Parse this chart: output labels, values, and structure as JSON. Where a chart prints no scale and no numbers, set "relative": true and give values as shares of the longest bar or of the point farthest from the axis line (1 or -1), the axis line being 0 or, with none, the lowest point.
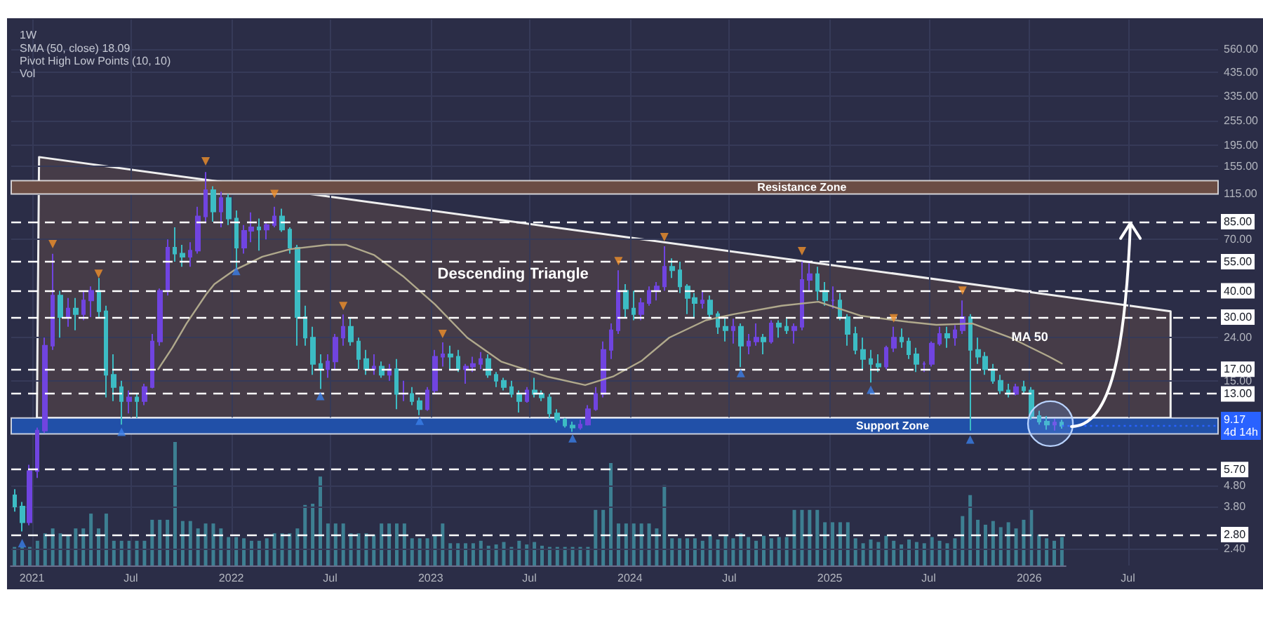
{
  "chart_data": [
    {
      "type": "candlestick",
      "title": "1W",
      "subtitle": "SMA (50, close) 18.09\nPivot High Low Points (10, 10)\nVol",
      "xlim": [
        "2020-11-24",
        "2026-12-13"
      ],
      "xticks": [
        {
          "value": "2021-01-01",
          "label": "2021"
        },
        {
          "value": "2021-07-01",
          "label": "Jul"
        },
        {
          "value": "2022-01-01",
          "label": "2022"
        },
        {
          "value": "2022-07-01",
          "label": "Jul"
        },
        {
          "value": "2023-01-01",
          "label": "2023"
        },
        {
          "value": "2023-07-01",
          "label": "Jul"
        },
        {
          "value": "2024-01-01",
          "label": "2024"
        },
        {
          "value": "2024-07-01",
          "label": "Jul"
        },
        {
          "value": "2025-01-01",
          "label": "2025"
        },
        {
          "value": "2025-07-01",
          "label": "Jul"
        },
        {
          "value": "2026-01-01",
          "label": "2026"
        },
        {
          "value": "2026-07-01",
          "label": "Jul"
        }
      ],
      "ylim": [
        2.0,
        770
      ],
      "log": true,
      "yticks": [
        {
          "value": 560,
          "label": "560.00"
        },
        {
          "value": 435,
          "label": "435.00"
        },
        {
          "value": 335,
          "label": "335.00"
        },
        {
          "value": 255,
          "label": "255.00"
        },
        {
          "value": 195,
          "label": "195.00"
        },
        {
          "value": 155,
          "label": "155.00"
        },
        {
          "value": 115,
          "label": "115.00"
        },
        {
          "value": 70,
          "label": "70.00"
        },
        {
          "value": 24,
          "label": "24.00"
        },
        {
          "value": 15,
          "label": "15.00"
        },
        {
          "value": 4.8,
          "label": "4.80"
        },
        {
          "value": 3.8,
          "label": "3.80"
        },
        {
          "value": 2.4,
          "label": "2.40"
        }
      ],
      "grid": true,
      "series": [
        {
          "type": "area",
          "name": "Descending Triangle",
          "color": "#463c48",
          "x": [
            "2021-01-14",
            "2026-09-17",
            "2026-09-17",
            "2021-01-10",
            "2021-01-14"
          ],
          "values": [
            172,
            32,
            10,
            10,
            172
          ]
        },
        {
          "type": "line",
          "name": "MA 50",
          "color": "#b0a98c",
          "x": [
            "2021-08-20",
            "2021-09-15",
            "2021-10-11",
            "2021-11-16",
            "2021-12-01",
            "2022-01-06",
            "2022-02-27",
            "2022-04-19",
            "2022-06-25",
            "2022-07-31",
            "2022-09-20",
            "2022-11-11",
            "2023-01-09",
            "2023-03-09",
            "2023-05-10",
            "2023-08-02",
            "2023-10-11",
            "2023-12-01",
            "2024-01-22",
            "2024-03-13",
            "2024-05-19",
            "2024-07-09",
            "2024-10-05",
            "2024-12-11",
            "2025-02-26",
            "2025-05-24",
            "2025-07-15",
            "2025-09-19",
            "2025-11-28",
            "2026-02-05",
            "2026-03-02"
          ],
          "values": [
            17,
            21.5,
            28,
            38.5,
            43,
            50,
            58,
            63,
            66,
            66,
            59,
            47,
            34.5,
            24,
            18.5,
            15.7,
            14.3,
            15.7,
            18.6,
            24,
            29,
            31,
            34,
            35.5,
            30.5,
            28.5,
            27.6,
            28,
            24,
            19.6,
            18.09
          ]
        },
        {
          "x": [
            "2020-11-30",
            "2020-12-14",
            "2020-12-28",
            "2021-01-11",
            "2021-01-25",
            "2021-02-08",
            "2021-02-22",
            "2021-03-08",
            "2021-03-22",
            "2021-04-05",
            "2021-04-19",
            "2021-05-03",
            "2021-05-17",
            "2021-05-31",
            "2021-06-14",
            "2021-06-28",
            "2021-07-12",
            "2021-07-26",
            "2021-08-09",
            "2021-08-23",
            "2021-09-06",
            "2021-09-20",
            "2021-10-04",
            "2021-10-18",
            "2021-11-01",
            "2021-11-15",
            "2021-11-29",
            "2021-12-13",
            "2021-12-27",
            "2022-01-10",
            "2022-01-24",
            "2022-02-07",
            "2022-02-21",
            "2022-03-07",
            "2022-03-21",
            "2022-04-04",
            "2022-04-18",
            "2022-05-02",
            "2022-05-16",
            "2022-05-30",
            "2022-06-13",
            "2022-06-27",
            "2022-07-11",
            "2022-07-25",
            "2022-08-08",
            "2022-08-22",
            "2022-09-05",
            "2022-09-19",
            "2022-10-03",
            "2022-10-17",
            "2022-10-31",
            "2022-11-14",
            "2022-11-28",
            "2022-12-12",
            "2022-12-26",
            "2023-01-09",
            "2023-01-23",
            "2023-02-06",
            "2023-02-20",
            "2023-03-06",
            "2023-03-20",
            "2023-04-03",
            "2023-04-17",
            "2023-05-01",
            "2023-05-15",
            "2023-05-29",
            "2023-06-12",
            "2023-06-26",
            "2023-07-10",
            "2023-07-24",
            "2023-08-07",
            "2023-08-21",
            "2023-09-04",
            "2023-09-18",
            "2023-10-02",
            "2023-10-16",
            "2023-10-30",
            "2023-11-13",
            "2023-11-27",
            "2023-12-11",
            "2023-12-25",
            "2024-01-08",
            "2024-01-22",
            "2024-02-05",
            "2024-02-19",
            "2024-03-04",
            "2024-03-18",
            "2024-04-01",
            "2024-04-15",
            "2024-04-29",
            "2024-05-13",
            "2024-05-27",
            "2024-06-10",
            "2024-06-24",
            "2024-07-08",
            "2024-07-22",
            "2024-08-05",
            "2024-08-19",
            "2024-09-02",
            "2024-09-16",
            "2024-09-30",
            "2024-10-14",
            "2024-10-28",
            "2024-11-11",
            "2024-11-25",
            "2024-12-09",
            "2024-12-23",
            "2025-01-06",
            "2025-01-20",
            "2025-02-03",
            "2025-02-17",
            "2025-03-03",
            "2025-03-17",
            "2025-03-31",
            "2025-04-14",
            "2025-04-28",
            "2025-05-12",
            "2025-05-26",
            "2025-06-09",
            "2025-06-23",
            "2025-07-07",
            "2025-07-21",
            "2025-08-04",
            "2025-08-18",
            "2025-09-01",
            "2025-09-15",
            "2025-09-29",
            "2025-10-13",
            "2025-10-27",
            "2025-11-10",
            "2025-11-24",
            "2025-12-08",
            "2025-12-22",
            "2026-01-05",
            "2026-01-19",
            "2026-02-02",
            "2026-02-16",
            "2026-03-02"
          ],
          "ohlc": [
            [
              4.3,
              4.6,
              3.6,
              3.8
            ],
            [
              3.8,
              4.0,
              2.9,
              3.2
            ],
            [
              3.2,
              6.0,
              3.1,
              5.6
            ],
            [
              5.6,
              9.0,
              5.2,
              8.7
            ],
            [
              8.7,
              24,
              8.5,
              22
            ],
            [
              22,
              59.9,
              21,
              38
            ],
            [
              38,
              40,
              24,
              30
            ],
            [
              30,
              37,
              27,
              33
            ],
            [
              33,
              37,
              26,
              31
            ],
            [
              31,
              40,
              29,
              36
            ],
            [
              36,
              42,
              30,
              40
            ],
            [
              40,
              46,
              30,
              32
            ],
            [
              32,
              34,
              12.5,
              16
            ],
            [
              16,
              20,
              12,
              14
            ],
            [
              14,
              15,
              9.3,
              12
            ],
            [
              12,
              13.5,
              10.5,
              12.5
            ],
            [
              12.5,
              13,
              10,
              12
            ],
            [
              12,
              14.5,
              11.5,
              14
            ],
            [
              14,
              25,
              13.8,
              23
            ],
            [
              23,
              41,
              22,
              40
            ],
            [
              40,
              70,
              38,
              64
            ],
            [
              64,
              80,
              55,
              60
            ],
            [
              60,
              66,
              52,
              58
            ],
            [
              58,
              68,
              52,
              62
            ],
            [
              62,
              100,
              60,
              90
            ],
            [
              90,
              146,
              85,
              120
            ],
            [
              120,
              125,
              85,
              95
            ],
            [
              95,
              118,
              80,
              110
            ],
            [
              110,
              115,
              82,
              88
            ],
            [
              88,
              96,
              51,
              64
            ],
            [
              64,
              82,
              60,
              77
            ],
            [
              77,
              94,
              68,
              80
            ],
            [
              80,
              88,
              62,
              78
            ],
            [
              78,
              84,
              70,
              82
            ],
            [
              82,
              100,
              80,
              90
            ],
            [
              90,
              98,
              76,
              78
            ],
            [
              78,
              80,
              60,
              64
            ],
            [
              64,
              66,
              22,
              30
            ],
            [
              30,
              34,
              22,
              24
            ],
            [
              24,
              27,
              16,
              18
            ],
            [
              18,
              20,
              13.7,
              17
            ],
            [
              17,
              20,
              15.5,
              18.5
            ],
            [
              18.5,
              25,
              17,
              24
            ],
            [
              24,
              30.9,
              22,
              27
            ],
            [
              27,
              30,
              22,
              23
            ],
            [
              23,
              24,
              17,
              19
            ],
            [
              19,
              21,
              16,
              17
            ],
            [
              17,
              20,
              16,
              17.5
            ],
            [
              17.5,
              18.5,
              15.5,
              16
            ],
            [
              16,
              18,
              15,
              17
            ],
            [
              17,
              19,
              11,
              13
            ],
            [
              13,
              15,
              12,
              13
            ],
            [
              13,
              14,
              11.5,
              12
            ],
            [
              12,
              12.5,
              10.3,
              11
            ],
            [
              11,
              14,
              10.8,
              13.5
            ],
            [
              13.5,
              21,
              13,
              19.5
            ],
            [
              19.5,
              22.8,
              17.5,
              20
            ],
            [
              20,
              22,
              17,
              19.5
            ],
            [
              19.5,
              21,
              16.5,
              17
            ],
            [
              17,
              18,
              14.5,
              17.5
            ],
            [
              17.5,
              19.5,
              16.5,
              18
            ],
            [
              18,
              20.5,
              17,
              19
            ],
            [
              19,
              20,
              15.5,
              16
            ],
            [
              16,
              16.5,
              14,
              15
            ],
            [
              15,
              15.5,
              13.5,
              14
            ],
            [
              14,
              15,
              12.5,
              13
            ],
            [
              13,
              13.5,
              10.6,
              12
            ],
            [
              12,
              14,
              11.8,
              13.5
            ],
            [
              13.5,
              15.5,
              12.5,
              13
            ],
            [
              13,
              13.5,
              12,
              12.5
            ],
            [
              12.5,
              13,
              10,
              10.5
            ],
            [
              10.5,
              11,
              9.5,
              9.8
            ],
            [
              9.8,
              10,
              9.0,
              9.2
            ],
            [
              9.2,
              9.6,
              8.6,
              9.0
            ],
            [
              9.0,
              9.8,
              8.8,
              9.3
            ],
            [
              9.3,
              11.5,
              9.2,
              11
            ],
            [
              11,
              14,
              10.8,
              13
            ],
            [
              13,
              23,
              12.5,
              21
            ],
            [
              21,
              28,
              19,
              26
            ],
            [
              26,
              50,
              25,
              40
            ],
            [
              40,
              43,
              30,
              33
            ],
            [
              33,
              40,
              29,
              31
            ],
            [
              31,
              37,
              29,
              35
            ],
            [
              35,
              42,
              34,
              40
            ],
            [
              40,
              44,
              36,
              42
            ],
            [
              42,
              65,
              40,
              52
            ],
            [
              52,
              57,
              46,
              50
            ],
            [
              50,
              55,
              39,
              42
            ],
            [
              42,
              43,
              31,
              37
            ],
            [
              37,
              39,
              30,
              35
            ],
            [
              35,
              40,
              33,
              36
            ],
            [
              36,
              38,
              30,
              31
            ],
            [
              31,
              32,
              25,
              27
            ],
            [
              27,
              30,
              23,
              26
            ],
            [
              26,
              29.5,
              22.5,
              27
            ],
            [
              27,
              28,
              17.4,
              22
            ],
            [
              22,
              25,
              20,
              23
            ],
            [
              23,
              28,
              22,
              24
            ],
            [
              24,
              25,
              20,
              23
            ],
            [
              23,
              29,
              22.5,
              28
            ],
            [
              28,
              29,
              24,
              27
            ],
            [
              27,
              29.5,
              25,
              26
            ],
            [
              26,
              28,
              22.5,
              27
            ],
            [
              27,
              55,
              26,
              45
            ],
            [
              45,
              54,
              40,
              48
            ],
            [
              48,
              52,
              36,
              40
            ],
            [
              40,
              44,
              34,
              36
            ],
            [
              36,
              42,
              33,
              36
            ],
            [
              36,
              39,
              29,
              30
            ],
            [
              30,
              31,
              22,
              25
            ],
            [
              25,
              27,
              20,
              21
            ],
            [
              21,
              24,
              17,
              19
            ],
            [
              19,
              21,
              14.7,
              18
            ],
            [
              18,
              20,
              16.5,
              17.5
            ],
            [
              17.5,
              22,
              17,
              21.5
            ],
            [
              21.5,
              27,
              20.5,
              24
            ],
            [
              24,
              26.5,
              21.5,
              23
            ],
            [
              23,
              24,
              19,
              20
            ],
            [
              20,
              21.5,
              16.5,
              18
            ],
            [
              18,
              18.5,
              16.5,
              18
            ],
            [
              18,
              23,
              17.5,
              22.5
            ],
            [
              22.5,
              27,
              22,
              25
            ],
            [
              25,
              27,
              21.5,
              24
            ],
            [
              24,
              27.5,
              22,
              26
            ],
            [
              26,
              36,
              25,
              30
            ],
            [
              30,
              31,
              8.7,
              21
            ],
            [
              21,
              24,
              18,
              19.5
            ],
            [
              19.5,
              20.5,
              16,
              17
            ],
            [
              17,
              18,
              14.5,
              15
            ],
            [
              15,
              16,
              13,
              13.5
            ],
            [
              13.5,
              14.5,
              12.5,
              13
            ],
            [
              13,
              14.5,
              12.8,
              14
            ],
            [
              14,
              15,
              13,
              13.5
            ],
            [
              13.5,
              14,
              9.8,
              10.2
            ],
            [
              10.2,
              10.8,
              9.3,
              9.6
            ],
            [
              9.6,
              10.2,
              8.8,
              9.3
            ],
            [
              9.3,
              9.9,
              8.7,
              9.5
            ],
            [
              9.5,
              9.8,
              8.9,
              9.17
            ]
          ],
          "colors": [
            "#3cbcc4",
            "#3cbcc4",
            "#7044e0",
            "#7044e0",
            "#7044e0",
            "#7044e0",
            "#3cbcc4",
            "#7044e0",
            "#3cbcc4",
            "#7044e0",
            "#7044e0",
            "#3cbcc4",
            "#3cbcc4",
            "#3cbcc4",
            "#3cbcc4",
            "#7044e0",
            "#3cbcc4",
            "#7044e0",
            "#7044e0",
            "#7044e0",
            "#7044e0",
            "#3cbcc4",
            "#3cbcc4",
            "#7044e0",
            "#7044e0",
            "#7044e0",
            "#3cbcc4",
            "#7044e0",
            "#3cbcc4",
            "#3cbcc4",
            "#7044e0",
            "#7044e0",
            "#3cbcc4",
            "#7044e0",
            "#7044e0",
            "#3cbcc4",
            "#3cbcc4",
            "#3cbcc4",
            "#3cbcc4",
            "#3cbcc4",
            "#3cbcc4",
            "#7044e0",
            "#7044e0",
            "#7044e0",
            "#3cbcc4",
            "#3cbcc4",
            "#3cbcc4",
            "#7044e0",
            "#3cbcc4",
            "#7044e0",
            "#3cbcc4",
            "#7044e0",
            "#3cbcc4",
            "#3cbcc4",
            "#7044e0",
            "#7044e0",
            "#7044e0",
            "#3cbcc4",
            "#3cbcc4",
            "#7044e0",
            "#7044e0",
            "#7044e0",
            "#3cbcc4",
            "#3cbcc4",
            "#3cbcc4",
            "#3cbcc4",
            "#3cbcc4",
            "#7044e0",
            "#3cbcc4",
            "#3cbcc4",
            "#3cbcc4",
            "#3cbcc4",
            "#3cbcc4",
            "#3cbcc4",
            "#7044e0",
            "#7044e0",
            "#7044e0",
            "#7044e0",
            "#7044e0",
            "#7044e0",
            "#3cbcc4",
            "#3cbcc4",
            "#7044e0",
            "#7044e0",
            "#7044e0",
            "#7044e0",
            "#3cbcc4",
            "#3cbcc4",
            "#3cbcc4",
            "#3cbcc4",
            "#7044e0",
            "#3cbcc4",
            "#3cbcc4",
            "#3cbcc4",
            "#7044e0",
            "#3cbcc4",
            "#7044e0",
            "#7044e0",
            "#3cbcc4",
            "#7044e0",
            "#3cbcc4",
            "#3cbcc4",
            "#7044e0",
            "#7044e0",
            "#7044e0",
            "#3cbcc4",
            "#3cbcc4",
            "#7044e0",
            "#3cbcc4",
            "#3cbcc4",
            "#3cbcc4",
            "#3cbcc4",
            "#3cbcc4",
            "#3cbcc4",
            "#7044e0",
            "#7044e0",
            "#3cbcc4",
            "#3cbcc4",
            "#3cbcc4",
            "#7044e0",
            "#7044e0",
            "#7044e0",
            "#3cbcc4",
            "#7044e0",
            "#7044e0",
            "#3cbcc4",
            "#3cbcc4",
            "#3cbcc4",
            "#3cbcc4",
            "#3cbcc4",
            "#3cbcc4",
            "#7044e0",
            "#3cbcc4",
            "#3cbcc4",
            "#3cbcc4",
            "#3cbcc4",
            "#7044e0",
            "#3cbcc4"
          ]
        },
        {
          "type": "scatter",
          "color": "#f0902a",
          "marker": "triangle",
          "x": [
            "2021-02-08",
            "2021-05-03",
            "2021-11-15",
            "2022-03-21",
            "2022-07-25",
            "2023-01-23",
            "2023-12-11",
            "2024-03-04",
            "2024-11-11",
            "2025-04-28",
            "2025-09-01"
          ],
          "values": [
            66.6,
            48.2,
            164,
            115,
            33.9,
            25,
            55.3,
            71.8,
            61.6,
            29.6,
            40.1
          ]
        },
        {
          "type": "scatter",
          "color": "#3a7ee8",
          "marker": "triangle",
          "x": [
            "2020-12-14",
            "2021-06-14",
            "2022-01-10",
            "2022-06-13",
            "2022-12-12",
            "2023-09-18",
            "2024-07-22",
            "2025-03-17",
            "2025-09-15"
          ],
          "values": [
            2.55,
            8.6,
            49.7,
            12.7,
            9.7,
            8.0,
            16.3,
            13.6,
            7.9
          ]
        }
      ],
      "ref_lines": [
        {
          "axis": "y",
          "value": 85,
          "label": "85.00",
          "color": "#ffffff",
          "line_style": "dashed"
        },
        {
          "axis": "y",
          "value": 55,
          "label": "55.00",
          "color": "#ffffff",
          "line_style": "dashed"
        },
        {
          "axis": "y",
          "value": 40,
          "label": "40.00",
          "color": "#ffffff",
          "line_style": "dashed"
        },
        {
          "axis": "y",
          "value": 30,
          "label": "30.00",
          "color": "#ffffff",
          "line_style": "dashed"
        },
        {
          "axis": "y",
          "value": 17,
          "label": "17.00",
          "color": "#ffffff",
          "line_style": "dashed"
        },
        {
          "axis": "y",
          "value": 13,
          "label": "13.00",
          "color": "#ffffff",
          "line_style": "dashed"
        },
        {
          "axis": "y",
          "value": 5.7,
          "label": "5.70",
          "color": "#ffffff",
          "line_style": "dashed"
        },
        {
          "axis": "y",
          "value": 2.8,
          "label": "2.80",
          "color": "#ffffff",
          "line_style": "dashed"
        },
        {
          "axis": "y",
          "value": 9.17,
          "label": "9.17\n4d 14h",
          "color": "#2962ff",
          "line_style": "dotted"
        }
      ],
      "bands": [
        {
          "axis": "y",
          "from": 115,
          "to": 133,
          "label": "Resistance Zone",
          "color": "#6b4d45"
        },
        {
          "axis": "y",
          "from": 8.4,
          "to": 10,
          "label": "Support Zone",
          "color": "#2150a8"
        }
      ]
    },
    {
      "type": "bar",
      "relative": true,
      "color": "#3d7f92",
      "categories": [
        null,
        null,
        null,
        null,
        null,
        null,
        null,
        null,
        null,
        null,
        null,
        null,
        null,
        null,
        null,
        null,
        null,
        null,
        null,
        null,
        null,
        null,
        null,
        null,
        null,
        null,
        null,
        null,
        null,
        null,
        null,
        null,
        null,
        null,
        null,
        null,
        null,
        null,
        null,
        null,
        null,
        null,
        null,
        null,
        null,
        null,
        null,
        null,
        null,
        null,
        null,
        null,
        null,
        null,
        null,
        null,
        null,
        null,
        null,
        null,
        null,
        null,
        null,
        null,
        null,
        null,
        null,
        null,
        null,
        null,
        null,
        null,
        null,
        null,
        null,
        null,
        null,
        null,
        null,
        null,
        null,
        null,
        null,
        null,
        null,
        null,
        null,
        null,
        null,
        null,
        null,
        null,
        null,
        null,
        null,
        null,
        null,
        null,
        null,
        null,
        null,
        null,
        null,
        null,
        null,
        null,
        null,
        null,
        null,
        null,
        null,
        null,
        null,
        null,
        null,
        null,
        null,
        null,
        null,
        null,
        null,
        null,
        null,
        null,
        null,
        null,
        null,
        null,
        null,
        null,
        null,
        null,
        null,
        null,
        null,
        null,
        null,
        null
      ],
      "values": [
        0.15,
        0.15,
        0.15,
        0.2,
        0.26,
        0.3,
        0.26,
        0.25,
        0.3,
        0.3,
        0.42,
        0.3,
        0.42,
        0.2,
        0.2,
        0.2,
        0.2,
        0.2,
        0.37,
        0.37,
        0.37,
        1,
        0.36,
        0.36,
        0.3,
        0.34,
        0.34,
        0.3,
        0.23,
        0.23,
        0.22,
        0.2,
        0.2,
        0.22,
        0.26,
        0.26,
        0.26,
        0.3,
        0.49,
        0.5,
        0.72,
        0.34,
        0.34,
        0.34,
        0.26,
        0.26,
        0.26,
        0.25,
        0.34,
        0.34,
        0.34,
        0.34,
        0.22,
        0.22,
        0.22,
        0.25,
        0.34,
        0.18,
        0.18,
        0.18,
        0.18,
        0.2,
        0.16,
        0.17,
        0.19,
        0.15,
        0.2,
        0.17,
        0.19,
        0.16,
        0.15,
        0.15,
        0.15,
        0.15,
        0.15,
        0.15,
        0.45,
        0.45,
        0.83,
        0.34,
        0.34,
        0.34,
        0.34,
        0.34,
        0.3,
        0.65,
        0.22,
        0.22,
        0.22,
        0.22,
        0.2,
        0.24,
        0.21,
        0.25,
        0.22,
        0.26,
        0.23,
        0.2,
        0.24,
        0.22,
        0.23,
        0.23,
        0.45,
        0.45,
        0.45,
        0.45,
        0.35,
        0.35,
        0.35,
        0.35,
        0.22,
        0.18,
        0.21,
        0.19,
        0.24,
        0.2,
        0.17,
        0.21,
        0.19,
        0.18,
        0.23,
        0.2,
        0.18,
        0.22,
        0.4,
        0.57,
        0.37,
        0.33,
        0.36,
        0.31,
        0.35,
        0.3,
        0.37,
        0.45,
        0.25,
        0.22,
        0.2,
        0.23
      ]
    }
  ]
}
